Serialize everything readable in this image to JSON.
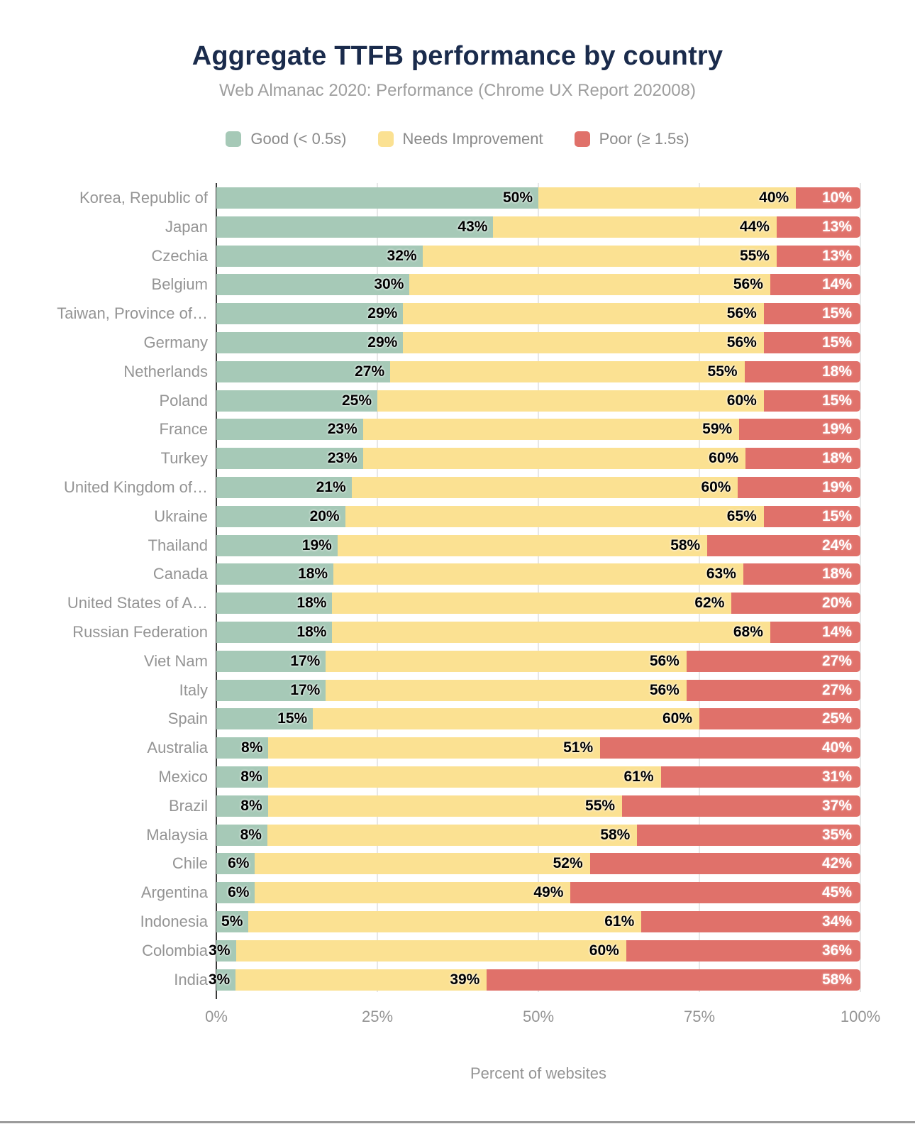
{
  "header": {
    "title": "Aggregate TTFB performance by country",
    "subtitle": "Web Almanac 2020: Performance (Chrome UX Report 202008)"
  },
  "legend": {
    "items": [
      {
        "id": "good",
        "label": "Good (< 0.5s)",
        "color": "#a6c9b7"
      },
      {
        "id": "needs",
        "label": "Needs Improvement",
        "color": "#fbe192"
      },
      {
        "id": "poor",
        "label": "Poor (≥ 1.5s)",
        "color": "#e0716a"
      }
    ]
  },
  "axis": {
    "x_ticks": [
      "0%",
      "25%",
      "50%",
      "75%",
      "100%"
    ],
    "x_tick_positions": [
      0,
      25,
      50,
      75,
      100
    ],
    "x_label": "Percent of websites"
  },
  "colors": {
    "title": "#1a2b4c",
    "subtitle": "#9e9e9e",
    "legend_text": "#8a8a8a",
    "category_label": "#949494",
    "tick_label": "#949494",
    "axis_line": "#3a3a3a",
    "gridline": "#e7e7e7",
    "footer_bar": "#9b9b9b"
  },
  "chart_data": {
    "type": "bar",
    "orientation": "horizontal",
    "stacked": true,
    "title": "Aggregate TTFB performance by country",
    "subtitle": "Web Almanac 2020: Performance (Chrome UX Report 202008)",
    "xlabel": "Percent of websites",
    "ylabel": "",
    "xlim": [
      0,
      100
    ],
    "grid": true,
    "legend_position": "top",
    "value_label_suffix": "%",
    "categories": [
      "Korea, Republic of",
      "Japan",
      "Czechia",
      "Belgium",
      "Taiwan, Province of…",
      "Germany",
      "Netherlands",
      "Poland",
      "France",
      "Turkey",
      "United Kingdom of…",
      "Ukraine",
      "Thailand",
      "Canada",
      "United States of A…",
      "Russian Federation",
      "Viet Nam",
      "Italy",
      "Spain",
      "Australia",
      "Mexico",
      "Brazil",
      "Malaysia",
      "Chile",
      "Argentina",
      "Indonesia",
      "Colombia",
      "India"
    ],
    "series": [
      {
        "name": "Good (< 0.5s)",
        "color": "#a6c9b7",
        "values": [
          50,
          43,
          32,
          30,
          29,
          29,
          27,
          25,
          23,
          23,
          21,
          20,
          19,
          18,
          18,
          18,
          17,
          17,
          15,
          8,
          8,
          8,
          8,
          6,
          6,
          5,
          3,
          3
        ]
      },
      {
        "name": "Needs Improvement",
        "color": "#fbe192",
        "values": [
          40,
          44,
          55,
          56,
          56,
          56,
          55,
          60,
          59,
          60,
          60,
          65,
          58,
          63,
          62,
          68,
          56,
          56,
          60,
          51,
          61,
          55,
          58,
          52,
          49,
          61,
          60,
          39
        ]
      },
      {
        "name": "Poor (≥ 1.5s)",
        "color": "#e0716a",
        "values": [
          10,
          13,
          13,
          14,
          15,
          15,
          18,
          15,
          19,
          18,
          19,
          15,
          24,
          18,
          20,
          14,
          27,
          27,
          25,
          40,
          31,
          37,
          35,
          42,
          45,
          34,
          36,
          58
        ]
      }
    ]
  }
}
